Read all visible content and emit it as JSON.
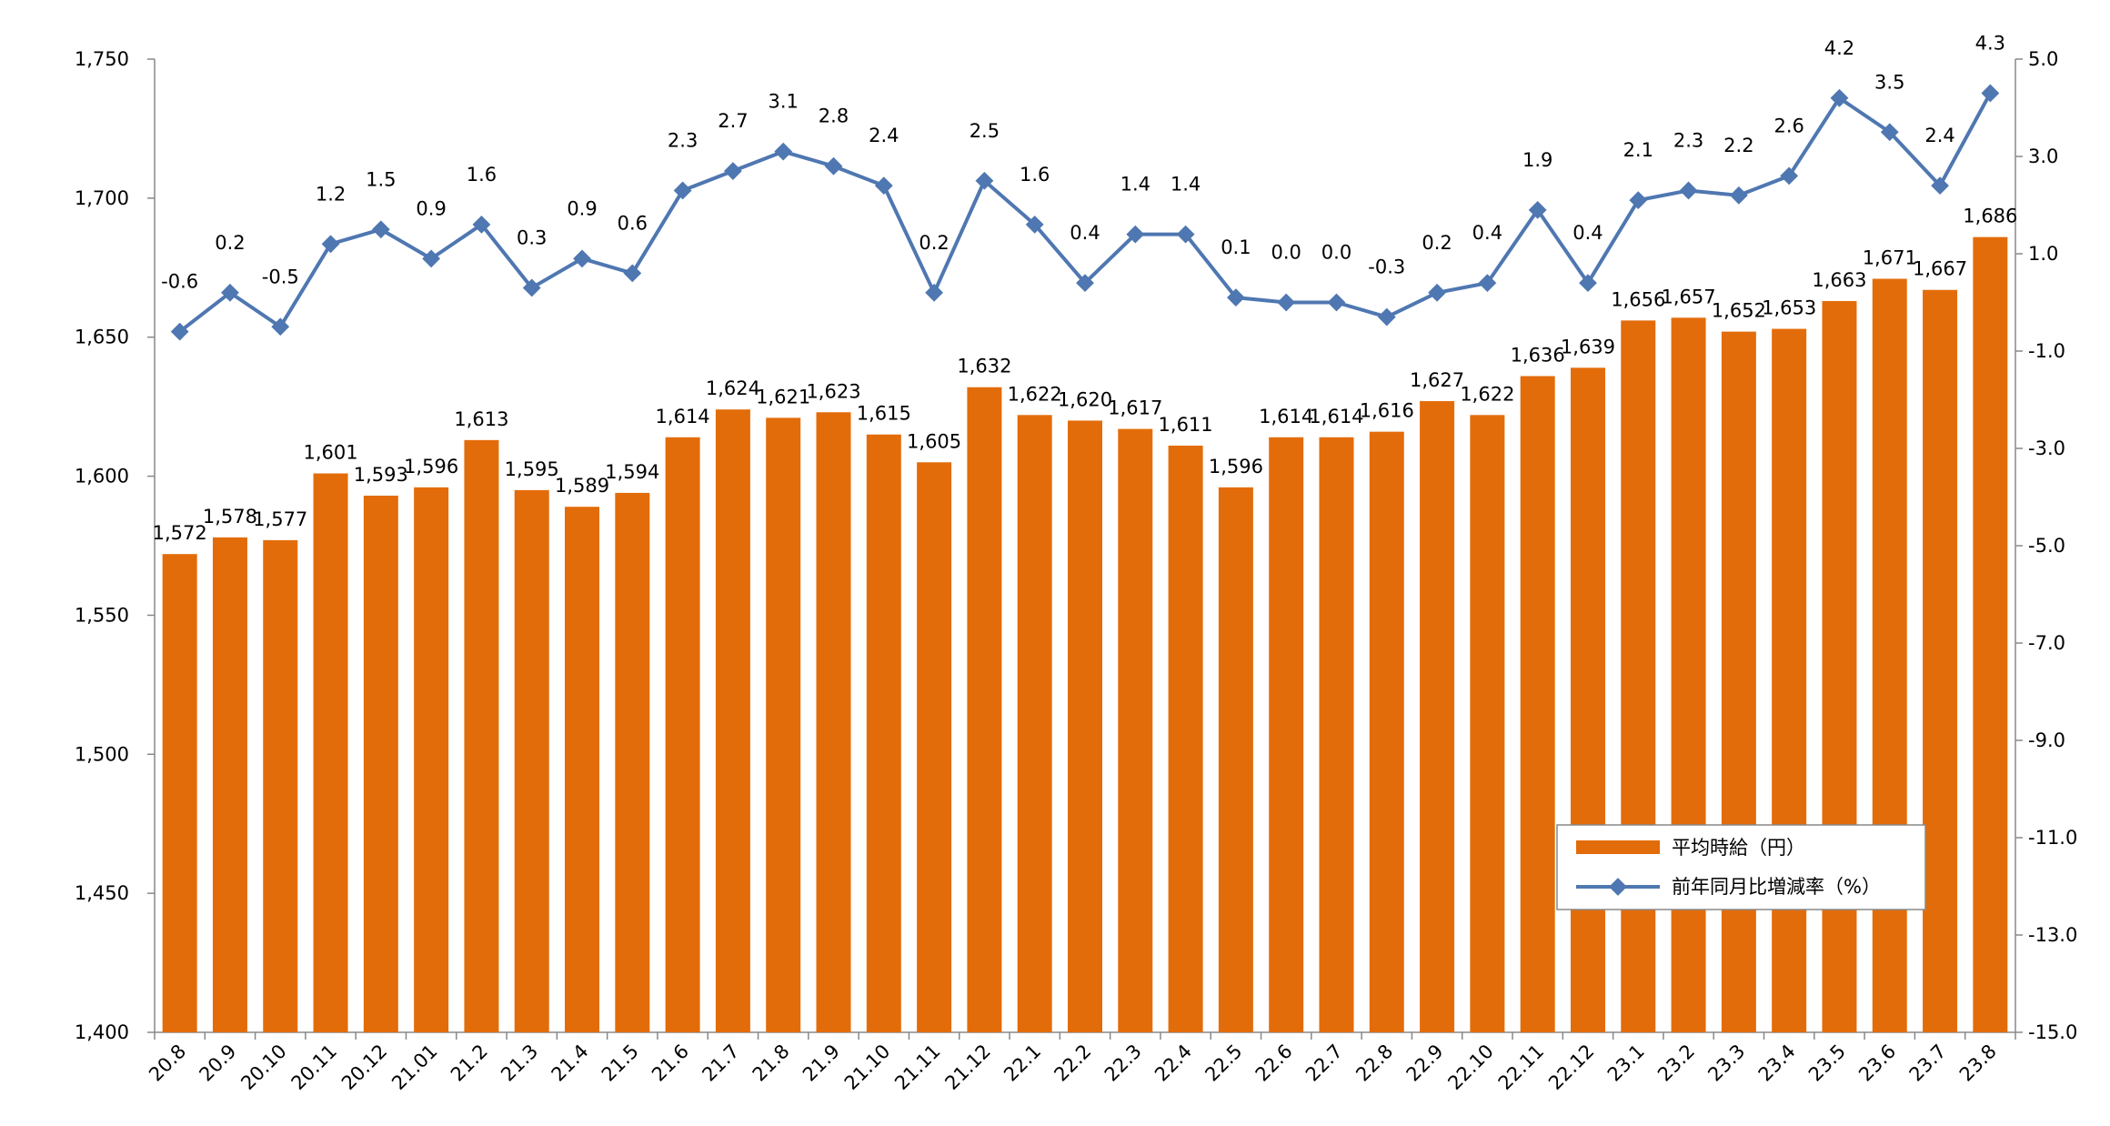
{
  "chart_data": {
    "type": "bar",
    "categories": [
      "20.8",
      "20.9",
      "20.10",
      "20.11",
      "20.12",
      "21.01",
      "21.2",
      "21.3",
      "21.4",
      "21.5",
      "21.6",
      "21.7",
      "21.8",
      "21.9",
      "21.10",
      "21.11",
      "21.12",
      "22.1",
      "22.2",
      "22.3",
      "22.4",
      "22.5",
      "22.6",
      "22.7",
      "22.8",
      "22.9",
      "22.10",
      "22.11",
      "22.12",
      "23.1",
      "23.2",
      "23.3",
      "23.4",
      "23.5",
      "23.6",
      "23.7",
      "23.8"
    ],
    "series": [
      {
        "name": "平均時給（円）",
        "type": "bar",
        "axis": "left",
        "color": "#E36C0A",
        "values": [
          1572,
          1578,
          1577,
          1601,
          1593,
          1596,
          1613,
          1595,
          1589,
          1594,
          1614,
          1624,
          1621,
          1623,
          1615,
          1605,
          1632,
          1622,
          1620,
          1617,
          1611,
          1596,
          1614,
          1614,
          1616,
          1627,
          1622,
          1636,
          1639,
          1656,
          1657,
          1652,
          1653,
          1663,
          1671,
          1667,
          1686
        ],
        "labels": [
          "1,572",
          "1,578",
          "1,577",
          "1,601",
          "1,593",
          "1,596",
          "1,613",
          "1,595",
          "1,589",
          "1,594",
          "1,614",
          "1,624",
          "1,621",
          "1,623",
          "1,615",
          "1,605",
          "1,632",
          "1,622",
          "1,620",
          "1,617",
          "1,611",
          "1,596",
          "1,614",
          "1,614",
          "1,616",
          "1,627",
          "1,622",
          "1,636",
          "1,639",
          "1,656",
          "1,657",
          "1,652",
          "1,653",
          "1,663",
          "1,671",
          "1,667",
          "1,686"
        ]
      },
      {
        "name": "前年同月比増減率（%）",
        "type": "line",
        "axis": "right",
        "color": "#4F77B1",
        "values": [
          -0.6,
          0.2,
          -0.5,
          1.2,
          1.5,
          0.9,
          1.6,
          0.3,
          0.9,
          0.6,
          2.3,
          2.7,
          3.1,
          2.8,
          2.4,
          0.2,
          2.5,
          1.6,
          0.4,
          1.4,
          1.4,
          0.1,
          0.0,
          0.0,
          -0.3,
          0.2,
          0.4,
          1.9,
          0.4,
          2.1,
          2.3,
          2.2,
          2.6,
          4.2,
          3.5,
          2.4,
          4.3
        ],
        "labels": [
          "-0.6",
          "0.2",
          "-0.5",
          "1.2",
          "1.5",
          "0.9",
          "1.6",
          "0.3",
          "0.9",
          "0.6",
          "2.3",
          "2.7",
          "3.1",
          "2.8",
          "2.4",
          "0.2",
          "2.5",
          "1.6",
          "0.4",
          "1.4",
          "1.4",
          "0.1",
          "0.0",
          "0.0",
          "-0.3",
          "0.2",
          "0.4",
          "1.9",
          "0.4",
          "2.1",
          "2.3",
          "2.2",
          "2.6",
          "4.2",
          "3.5",
          "2.4",
          "4.3"
        ]
      }
    ],
    "y_left": {
      "range": [
        1400,
        1750
      ],
      "ticks": [
        1400,
        1450,
        1500,
        1550,
        1600,
        1650,
        1700,
        1750
      ],
      "tick_labels": [
        "1,400",
        "1,450",
        "1,500",
        "1,550",
        "1,600",
        "1,650",
        "1,700",
        "1,750"
      ]
    },
    "y_right": {
      "range": [
        -15,
        5
      ],
      "ticks": [
        -15,
        -13,
        -11,
        -9,
        -7,
        -5,
        -3,
        -1,
        1,
        3,
        5
      ],
      "tick_labels": [
        "-15.0",
        "-13.0",
        "-11.0",
        "-9.0",
        "-7.0",
        "-5.0",
        "-3.0",
        "-1.0",
        "1.0",
        "3.0",
        "5.0"
      ]
    },
    "negative_label_color": "#FF0000",
    "grid": false,
    "legend_position": "bottom-right",
    "title": "",
    "xlabel": "",
    "ylabel": ""
  }
}
